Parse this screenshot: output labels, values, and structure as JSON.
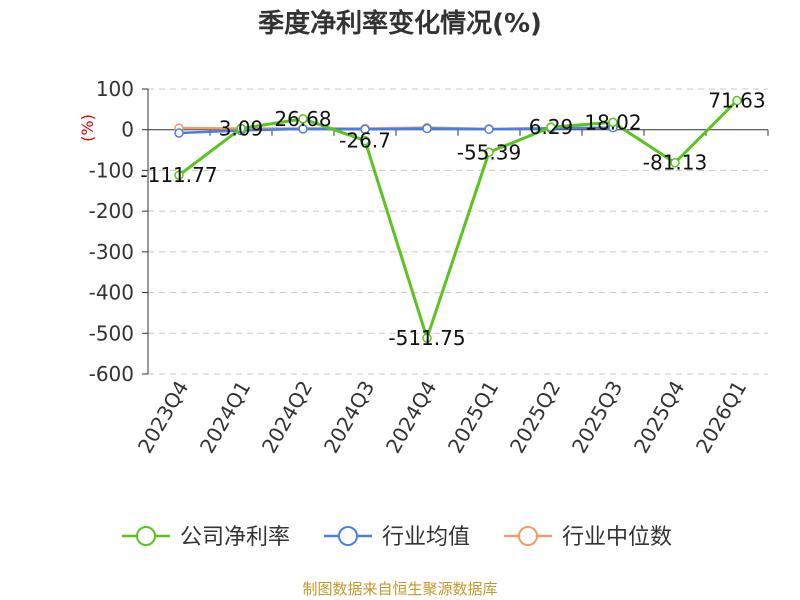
{
  "chart_data": {
    "type": "line",
    "title": "季度净利率变化情况(%)",
    "ylabel": "(%)",
    "ylim": [
      -600,
      100
    ],
    "yticks": [
      100,
      0,
      -100,
      -200,
      -300,
      -400,
      -500,
      -600
    ],
    "categories": [
      "2023Q4",
      "2024Q1",
      "2024Q2",
      "2024Q3",
      "2024Q4",
      "2025Q1",
      "2025Q2",
      "2025Q3",
      "2025Q4",
      "2026Q1"
    ],
    "series": [
      {
        "name": "公司净利率",
        "color": "#5ac41f",
        "values": [
          -111.77,
          3.09,
          26.68,
          -26.7,
          -511.75,
          -55.39,
          6.29,
          18.02,
          -81.13,
          71.63
        ],
        "labels": [
          "-111.77",
          "3.09",
          "26.68",
          "-26.7",
          "-511.75",
          "-55.39",
          "6.29",
          "18.02",
          "-81.13",
          "71.63"
        ]
      },
      {
        "name": "行业均值",
        "color": "#4a7fe0",
        "values": [
          -8,
          -2,
          2,
          1,
          3,
          1,
          3,
          5,
          null,
          null
        ]
      },
      {
        "name": "行业中位数",
        "color": "#f29a68",
        "values": [
          4,
          3,
          3,
          3,
          5,
          2,
          4,
          5,
          null,
          null
        ]
      }
    ],
    "grid": true,
    "legend": "bottom"
  },
  "source": "制图数据来自恒生聚源数据库"
}
